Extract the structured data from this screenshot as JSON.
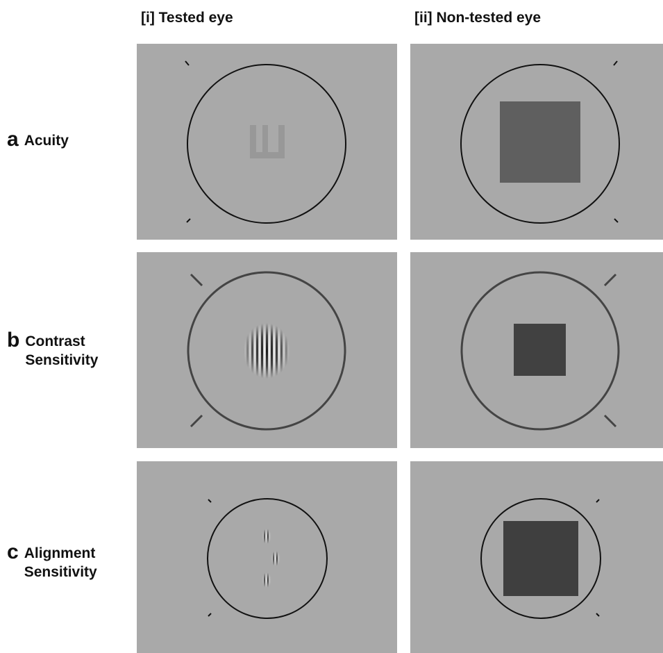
{
  "columns": [
    {
      "label": "[i] Tested eye"
    },
    {
      "label": "[ii] Non-tested eye"
    }
  ],
  "rows": [
    {
      "letter": "a",
      "label": "Acuity"
    },
    {
      "letter": "b",
      "label": "Contrast Sensitivity"
    },
    {
      "letter": "c",
      "label": "Alignment Sensitivity"
    }
  ],
  "stimuli": {
    "acuity_target": "tumbling-E",
    "contrast_target": "gabor-grating",
    "alignment_target": "three-gabor-patches",
    "non_tested_target": "dark-square"
  },
  "colors": {
    "panel_background": "#a9a9a9",
    "circle_stroke": "#111111",
    "square_acuity": "#5f5f5f",
    "square_contrast": "#414141",
    "square_alignment": "#3f3f3f",
    "letter_e": "#989898"
  }
}
